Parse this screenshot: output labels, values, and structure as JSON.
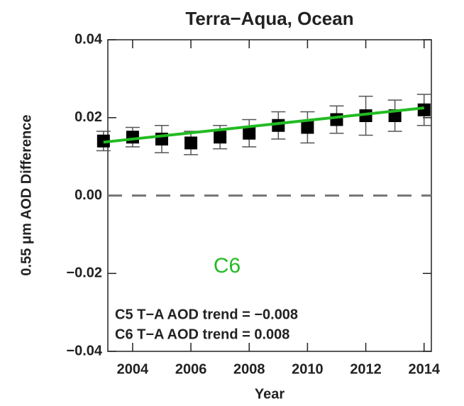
{
  "chart_data": {
    "type": "errorbar",
    "title": "Terra−Aqua, Ocean",
    "x_label": "Year",
    "y_label": "0.55 μm AOD Difference",
    "x": [
      2003,
      2004,
      2005,
      2006,
      2007,
      2008,
      2009,
      2010,
      2011,
      2012,
      2013,
      2014
    ],
    "series": [
      {
        "color": "#000000",
        "values": [
          0.014,
          0.015,
          0.0145,
          0.0135,
          0.015,
          0.016,
          0.018,
          0.0175,
          0.0195,
          0.0205,
          0.0205,
          0.022
        ],
        "errors": [
          0.0025,
          0.0025,
          0.0035,
          0.003,
          0.003,
          0.0035,
          0.0035,
          0.004,
          0.0035,
          0.005,
          0.004,
          0.004
        ]
      }
    ],
    "trend_line": {
      "x": [
        2003,
        2014
      ],
      "values": [
        0.0137,
        0.0225
      ],
      "color": "#22bb22"
    },
    "reference_line": {
      "value": 0,
      "color": "#777777"
    },
    "xlim": [
      2003.15,
      2014.25
    ],
    "ylim": [
      -0.04,
      0.04
    ],
    "xticks": [
      2004,
      2006,
      2008,
      2010,
      2012,
      2014
    ],
    "yticks": [
      {
        "value": -0.04,
        "label": "−0.04"
      },
      {
        "value": -0.02,
        "label": "−0.02"
      },
      {
        "value": 0,
        "label": "0.00"
      },
      {
        "value": 0.02,
        "label": "0.02"
      },
      {
        "value": 0.04,
        "label": "0.04"
      }
    ],
    "annotations": [
      {
        "text": "C6",
        "color": "#22bb22"
      },
      {
        "text": "C5 T−A AOD trend = −0.008"
      },
      {
        "text": "C6 T−A AOD trend = 0.008"
      }
    ]
  }
}
